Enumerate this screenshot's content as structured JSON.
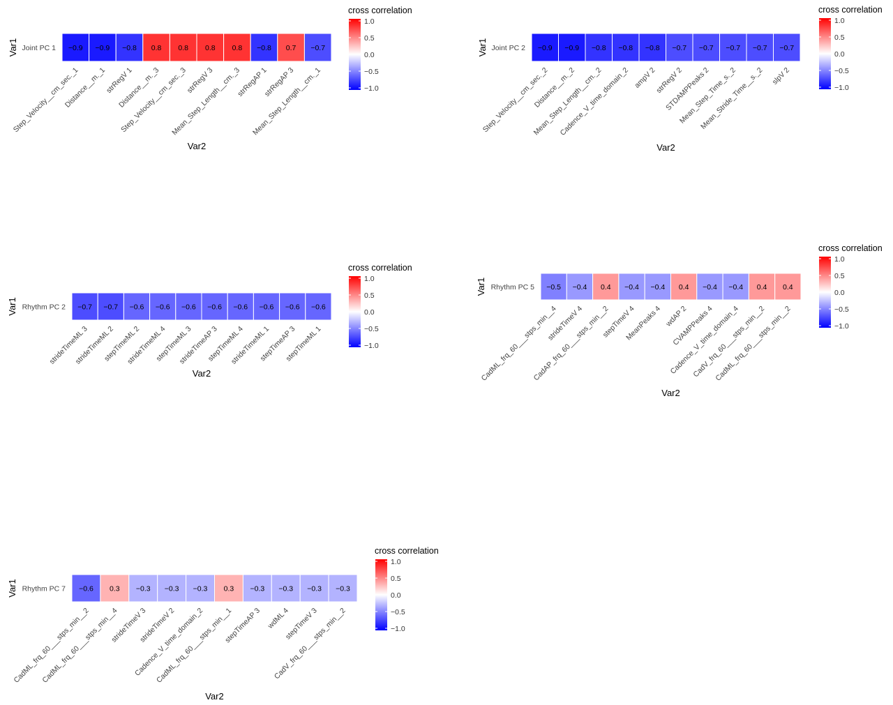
{
  "legend": {
    "title": "cross correlation",
    "ticks": [
      "1.0",
      "0.5",
      "0.0",
      "−0.5",
      "−1.0"
    ],
    "tick_values": [
      1.0,
      0.5,
      0.0,
      -0.5,
      -1.0
    ],
    "colors": {
      "low": "#0000FF",
      "mid": "#FFFFFF",
      "high": "#FF0000"
    }
  },
  "chart_data": [
    {
      "type": "heatmap",
      "xlabel": "Var2",
      "ylabel": "Var1",
      "row": "Joint PC 1",
      "value_labels": [
        "−0.9",
        "−0.9",
        "−0.8",
        "0.8",
        "0.8",
        "0.8",
        "0.8",
        "−0.8",
        "0.7",
        "−0.7"
      ],
      "categories": [
        "Step_Velocity__cm_sec._1",
        "Distance__m._1",
        "strRegV 1",
        "Distance__m._3",
        "Step_Velocity__cm_sec._3",
        "strRegV 3",
        "Mean_Step_Length__cm._3",
        "strRegAP 1",
        "strRegAP 3",
        "Mean_Step_Length__cm._1"
      ],
      "values": [
        -0.9,
        -0.9,
        -0.8,
        0.8,
        0.8,
        0.8,
        0.8,
        -0.8,
        0.7,
        -0.7
      ]
    },
    {
      "type": "heatmap",
      "xlabel": "Var2",
      "ylabel": "Var1",
      "row": "Joint PC 2",
      "value_labels": [
        "−0.9",
        "−0.9",
        "−0.8",
        "−0.8",
        "−0.8",
        "−0.7",
        "−0.7",
        "−0.7",
        "−0.7",
        "−0.7"
      ],
      "categories": [
        "Step_Velocity__cm_sec._2",
        "Distance__m._2",
        "Mean_Step_Length__cm._2",
        "Cadence_V_time_domain_2",
        "ampV 2",
        "strRegV 2",
        "STDAMPPeaks 2",
        "Mean_Step_Time_s._2",
        "Mean_Stride_Time__s._2",
        "slpV 2"
      ],
      "values": [
        -0.9,
        -0.9,
        -0.8,
        -0.8,
        -0.8,
        -0.7,
        -0.7,
        -0.7,
        -0.7,
        -0.7
      ]
    },
    {
      "type": "heatmap",
      "xlabel": "Var2",
      "ylabel": "Var1",
      "row": "Rhythm PC 2",
      "value_labels": [
        "−0.7",
        "−0.7",
        "−0.6",
        "−0.6",
        "−0.6",
        "−0.6",
        "−0.6",
        "−0.6",
        "−0.6",
        "−0.6"
      ],
      "categories": [
        "strideTimeML 3",
        "strideTimeML 2",
        "stepTimeML 2",
        "strideTimeML 4",
        "stepTimeML 3",
        "strideTimeAP 3",
        "stepTimeML 4",
        "strideTimeML 1",
        "stepTimeAP 3",
        "stepTimeML 1"
      ],
      "values": [
        -0.7,
        -0.7,
        -0.6,
        -0.6,
        -0.6,
        -0.6,
        -0.6,
        -0.6,
        -0.6,
        -0.6
      ]
    },
    {
      "type": "heatmap",
      "xlabel": "Var2",
      "ylabel": "Var1",
      "row": "Rhythm PC 5",
      "value_labels": [
        "−0.5",
        "−0.4",
        "0.4",
        "−0.4",
        "−0.4",
        "0.4",
        "−0.4",
        "−0.4",
        "0.4",
        "0.4"
      ],
      "categories": [
        "CadML_frq_60___stps_min__4",
        "strideTimeV 4",
        "CadAP_frq_60___stps_min__2",
        "stepTimeV 4",
        "MeanPeaks 4",
        "wdAP 2",
        "CVAMPPeaks 4",
        "Cadence_V_time_domain_4",
        "CadV_frq_60___stps_min__2",
        "CadML_frq_60___stps_min__2"
      ],
      "values": [
        -0.5,
        -0.4,
        0.4,
        -0.4,
        -0.4,
        0.4,
        -0.4,
        -0.4,
        0.4,
        0.4
      ]
    },
    {
      "type": "heatmap",
      "xlabel": "Var2",
      "ylabel": "Var1",
      "row": "Rhythm PC 7",
      "value_labels": [
        "−0.6",
        "0.3",
        "−0.3",
        "−0.3",
        "−0.3",
        "0.3",
        "−0.3",
        "−0.3",
        "−0.3",
        "−0.3"
      ],
      "categories": [
        "CadML_frq_60___stps_min__2",
        "CadML_frq_60___stps_min__4",
        "strideTimeV 3",
        "strideTimeV 2",
        "Cadence_V_time_domain_2",
        "CadML_frq_60___stps_min__1",
        "stepTimeAP 3",
        "wdML 4",
        "stepTimeV 3",
        "CadV_frq_60___stps_min__2"
      ],
      "values": [
        -0.6,
        0.3,
        -0.3,
        -0.3,
        -0.3,
        0.3,
        -0.3,
        -0.3,
        -0.3,
        -0.3
      ]
    }
  ]
}
